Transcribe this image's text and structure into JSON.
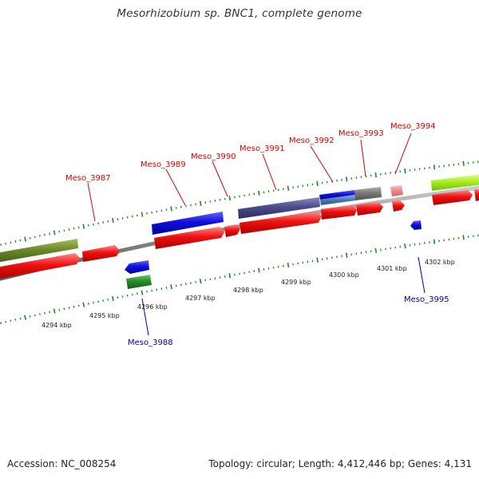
{
  "title": "Mesorhizobium sp. BNC1, complete genome",
  "footer": {
    "accession": "Accession: NC_008254",
    "summary": "Topology: circular; Length: 4,412,446 bp; Genes: 4,131"
  },
  "colors": {
    "forward_label": "#dd0000",
    "reverse_label": "#0000aa",
    "backbone": "#8a8a8a",
    "tick": "#1a8a1a",
    "cds": "#ee1111",
    "gene_blue": "#1010dd",
    "gene_purple": "#4c4c8c",
    "gene_olive": "#6d8a2a",
    "gene_green": "#2c8c2c",
    "gene_gray": "#7a7a7a",
    "gene_pink": "#ee8888",
    "gene_lime": "#aaee22",
    "gene_steel": "#4a7aaa"
  },
  "scale_labels": [
    "4294 kbp",
    "4295 kbp",
    "4296 kbp",
    "4297 kbp",
    "4298 kbp",
    "4299 kbp",
    "4300 kbp",
    "4301 kbp",
    "4302 kbp"
  ],
  "gene_labels": [
    {
      "name": "Meso_3987",
      "strand": "forward"
    },
    {
      "name": "Meso_3988",
      "strand": "reverse"
    },
    {
      "name": "Meso_3989",
      "strand": "forward"
    },
    {
      "name": "Meso_3990",
      "strand": "forward"
    },
    {
      "name": "Meso_3991",
      "strand": "forward"
    },
    {
      "name": "Meso_3992",
      "strand": "forward"
    },
    {
      "name": "Meso_3993",
      "strand": "forward"
    },
    {
      "name": "Meso_3994",
      "strand": "forward"
    },
    {
      "name": "Meso_3995",
      "strand": "reverse"
    }
  ]
}
